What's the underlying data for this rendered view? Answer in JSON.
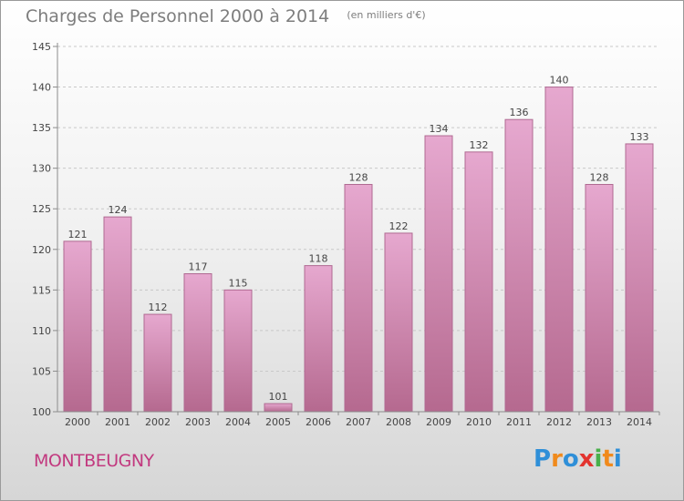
{
  "title": "Charges de Personnel 2000 à 2014",
  "subtitle": "(en milliers d'€)",
  "commune": "MONTBEUGNY",
  "logo": {
    "letters": [
      "P",
      "r",
      "o",
      "x",
      "i",
      "t",
      "i"
    ],
    "colors": [
      "#2f8fd8",
      "#f08a1c",
      "#2f8fd8",
      "#e3342f",
      "#48b04a",
      "#f08a1c",
      "#2f8fd8"
    ]
  },
  "colors": {
    "bar_top": "#e6a8cf",
    "bar_bottom": "#b5698f",
    "bar_border": "#b06a92",
    "axis": "#8c8c8c",
    "grid": "#c8c8c8",
    "tick_text": "#444444"
  },
  "chart_data": {
    "type": "bar",
    "title": "Charges de Personnel 2000 à 2014",
    "subtitle": "(en milliers d'€)",
    "categories": [
      "2000",
      "2001",
      "2002",
      "2003",
      "2004",
      "2005",
      "2006",
      "2007",
      "2008",
      "2009",
      "2010",
      "2011",
      "2012",
      "2013",
      "2014"
    ],
    "values": [
      121,
      124,
      112,
      117,
      115,
      101,
      118,
      128,
      122,
      134,
      132,
      136,
      140,
      128,
      133
    ],
    "ylim": [
      100,
      145
    ],
    "yticks": [
      100,
      105,
      110,
      115,
      120,
      125,
      130,
      135,
      140,
      145
    ],
    "grid": true,
    "grid_style": "dashed",
    "legend": "none"
  }
}
